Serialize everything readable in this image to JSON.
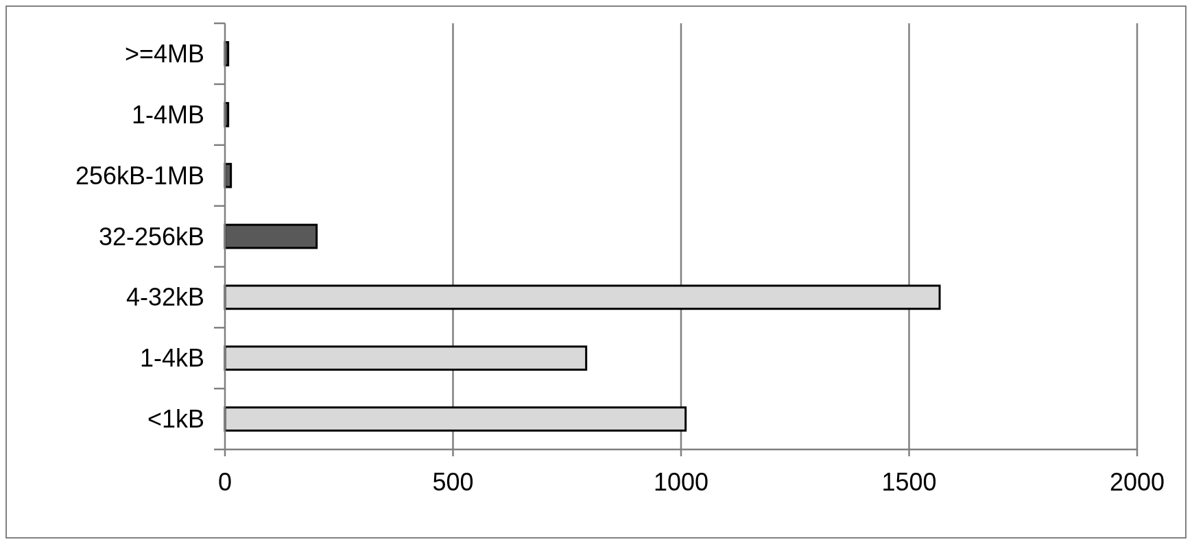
{
  "chart_data": {
    "type": "bar",
    "orientation": "horizontal",
    "categories": [
      ">=4MB",
      "1-4MB",
      "256kB-1MB",
      "32-256kB",
      "4-32kB",
      "1-4kB",
      "<1kB"
    ],
    "values": [
      7,
      7,
      13,
      201,
      1567,
      792,
      1010
    ],
    "colors": [
      "#595959",
      "#595959",
      "#595959",
      "#595959",
      "#d9d9d9",
      "#d9d9d9",
      "#d9d9d9"
    ],
    "xlim": [
      0,
      2000
    ],
    "xticks": [
      0,
      500,
      1000,
      1500,
      2000
    ],
    "grid": "x"
  }
}
